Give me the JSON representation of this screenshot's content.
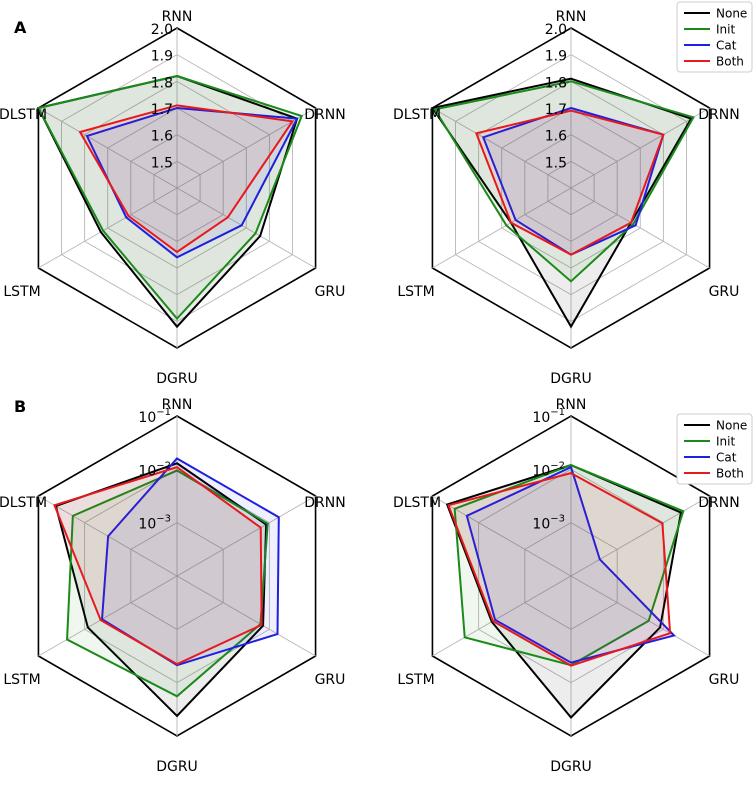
{
  "panels": [
    {
      "label": "A"
    },
    {
      "label": "B"
    }
  ],
  "legend": [
    {
      "name": "None",
      "color": "#000000"
    },
    {
      "name": "Init",
      "color": "#1a8a1a"
    },
    {
      "name": "Cat",
      "color": "#1f1fe0"
    },
    {
      "name": "Both",
      "color": "#e8191c"
    }
  ],
  "chart_data": [
    {
      "type": "radar",
      "panel": "A",
      "position": "left",
      "axes": [
        "RNN",
        "DRNN",
        "GRU",
        "DGRU",
        "LSTM",
        "DLSTM"
      ],
      "scale": "linear",
      "rmin": 1.4,
      "rmax": 2.0,
      "rings": [
        1.5,
        1.6,
        1.7,
        1.8,
        1.9,
        2.0
      ],
      "ring_labels": [
        "1.5",
        "1.6",
        "1.7",
        "1.8",
        "1.9",
        "2.0"
      ],
      "series": [
        {
          "name": "None",
          "values": [
            1.82,
            1.92,
            1.76,
            1.92,
            1.73,
            2.0
          ]
        },
        {
          "name": "Init",
          "values": [
            1.82,
            1.94,
            1.74,
            1.89,
            1.72,
            2.0
          ]
        },
        {
          "name": "Cat",
          "values": [
            1.7,
            1.92,
            1.68,
            1.66,
            1.62,
            1.79
          ]
        },
        {
          "name": "Both",
          "values": [
            1.71,
            1.9,
            1.62,
            1.64,
            1.61,
            1.82
          ]
        }
      ]
    },
    {
      "type": "radar",
      "panel": "A",
      "position": "right",
      "axes": [
        "RNN",
        "DRNN",
        "GRU",
        "DGRU",
        "LSTM",
        "DLSTM"
      ],
      "scale": "linear",
      "rmin": 1.4,
      "rmax": 2.0,
      "rings": [
        1.5,
        1.6,
        1.7,
        1.8,
        1.9,
        2.0
      ],
      "ring_labels": [
        "1.5",
        "1.6",
        "1.7",
        "1.8",
        "1.9",
        "2.0"
      ],
      "series": [
        {
          "name": "None",
          "values": [
            1.81,
            1.92,
            1.66,
            1.92,
            1.66,
            2.0
          ]
        },
        {
          "name": "Init",
          "values": [
            1.8,
            1.93,
            1.67,
            1.75,
            1.68,
            1.99
          ]
        },
        {
          "name": "Cat",
          "values": [
            1.7,
            1.8,
            1.68,
            1.65,
            1.64,
            1.78
          ]
        },
        {
          "name": "Both",
          "values": [
            1.69,
            1.8,
            1.66,
            1.65,
            1.66,
            1.81
          ]
        }
      ]
    },
    {
      "type": "radar",
      "panel": "B",
      "position": "left",
      "axes": [
        "RNN",
        "DRNN",
        "GRU",
        "DGRU",
        "LSTM",
        "DLSTM"
      ],
      "scale": "log",
      "log_min": -4,
      "log_max": -1,
      "rings": [
        -4,
        -3,
        -2,
        -1
      ],
      "ring_labels": [
        "",
        "10^-3",
        "10^-2",
        "10^-1"
      ],
      "series": [
        {
          "name": "None",
          "values": [
            0.013,
            0.0085,
            0.0073,
            0.042,
            0.0085,
            0.042
          ]
        },
        {
          "name": "Init",
          "values": [
            0.0095,
            0.0092,
            0.0064,
            0.018,
            0.024,
            0.018
          ]
        },
        {
          "name": "Cat",
          "values": [
            0.016,
            0.016,
            0.015,
            0.0047,
            0.0042,
            0.0031
          ]
        },
        {
          "name": "Both",
          "values": [
            0.011,
            0.0065,
            0.0068,
            0.0045,
            0.0045,
            0.045
          ]
        }
      ]
    },
    {
      "type": "radar",
      "panel": "B",
      "position": "right",
      "axes": [
        "RNN",
        "DRNN",
        "GRU",
        "DGRU",
        "LSTM",
        "DLSTM"
      ],
      "scale": "log",
      "log_min": -4,
      "log_max": -1,
      "rings": [
        -4,
        -3,
        -2,
        -1
      ],
      "ring_labels": [
        "",
        "10^-3",
        "10^-2",
        "10^-1"
      ],
      "series": [
        {
          "name": "None",
          "values": [
            0.012,
            0.024,
            0.0085,
            0.045,
            0.0052,
            0.048
          ]
        },
        {
          "name": "Init",
          "values": [
            0.012,
            0.027,
            0.0048,
            0.0047,
            0.02,
            0.033
          ]
        },
        {
          "name": "Cat",
          "values": [
            0.011,
            0.00042,
            0.017,
            0.0042,
            0.0044,
            0.018
          ]
        },
        {
          "name": "Both",
          "values": [
            0.0085,
            0.0095,
            0.014,
            0.0048,
            0.0049,
            0.045
          ]
        }
      ]
    }
  ]
}
